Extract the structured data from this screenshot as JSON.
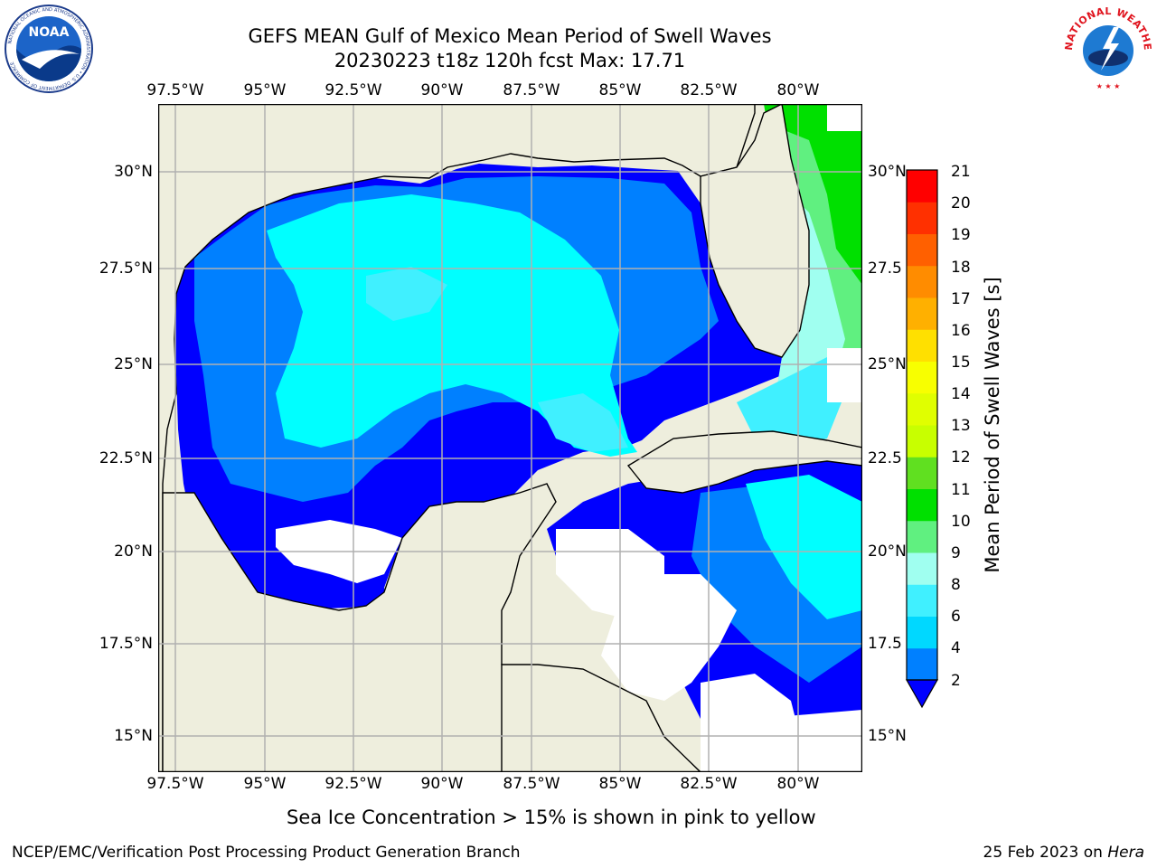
{
  "header": {
    "title_line1": "GEFS MEAN Gulf of Mexico Mean Period of Swell Waves",
    "title_line2": "20230223 t18z 120h fcst   Max: 17.71"
  },
  "logos": {
    "left": {
      "name": "NOAA",
      "ring_text": "NATIONAL OCEANIC AND ATMOSPHERIC ADMINISTRATION • U.S. DEPARTMENT OF COMMERCE"
    },
    "right": {
      "ring_text": "NATIONAL WEATHER SERVICE"
    }
  },
  "map": {
    "lon_labels": [
      "97.5°W",
      "95°W",
      "92.5°W",
      "90°W",
      "87.5°W",
      "85°W",
      "82.5°W",
      "80°W"
    ],
    "lat_labels_left": [
      "30°N",
      "27.5°N",
      "25°N",
      "22.5°N",
      "20°N",
      "17.5°N",
      "15°N"
    ],
    "lat_labels_right": [
      "30°N",
      "27.5",
      "25°N",
      "22.5",
      "20°N",
      "17.5",
      "15°N"
    ],
    "extent": {
      "lon_min": -98.0,
      "lon_max": -78.2,
      "lat_min": 14.0,
      "lat_max": 31.8
    },
    "colors": {
      "land": "#eeeedd",
      "grid": "#b0b0b0",
      "coast": "#000000",
      "nodata": "#ffffff"
    },
    "max_value": 17.71
  },
  "colorbar": {
    "label": "Mean Period of Swell Waves [s]",
    "ticks": [
      "21",
      "20",
      "19",
      "18",
      "17",
      "16",
      "15",
      "14",
      "13",
      "12",
      "11",
      "10",
      "9",
      "8",
      "6",
      "4",
      "2"
    ],
    "bins": [
      {
        "min": 2,
        "max": 4,
        "color": "#0080ff"
      },
      {
        "min": 4,
        "max": 6,
        "color": "#00d8ff"
      },
      {
        "min": 6,
        "max": 8,
        "color": "#40f0ff"
      },
      {
        "min": 8,
        "max": 9,
        "color": "#a0fff0"
      },
      {
        "min": 9,
        "max": 10,
        "color": "#60f080"
      },
      {
        "min": 10,
        "max": 11,
        "color": "#00e000"
      },
      {
        "min": 11,
        "max": 12,
        "color": "#60e020"
      },
      {
        "min": 12,
        "max": 13,
        "color": "#c8ff00"
      },
      {
        "min": 13,
        "max": 14,
        "color": "#e0ff00"
      },
      {
        "min": 14,
        "max": 15,
        "color": "#f8ff00"
      },
      {
        "min": 15,
        "max": 16,
        "color": "#ffe000"
      },
      {
        "min": 16,
        "max": 17,
        "color": "#ffb000"
      },
      {
        "min": 17,
        "max": 18,
        "color": "#ff8c00"
      },
      {
        "min": 18,
        "max": 19,
        "color": "#ff6000"
      },
      {
        "min": 19,
        "max": 20,
        "color": "#ff3000"
      },
      {
        "min": 20,
        "max": 21,
        "color": "#ff0000"
      }
    ],
    "under_color": "#0000ff"
  },
  "caption": "Sea Ice Concentration > 15% is shown in pink to yellow",
  "footer": {
    "left": "NCEP/EMC/Verification Post Processing Product Generation Branch",
    "right_prefix": "25 Feb 2023 on ",
    "right_host": "Hera"
  }
}
